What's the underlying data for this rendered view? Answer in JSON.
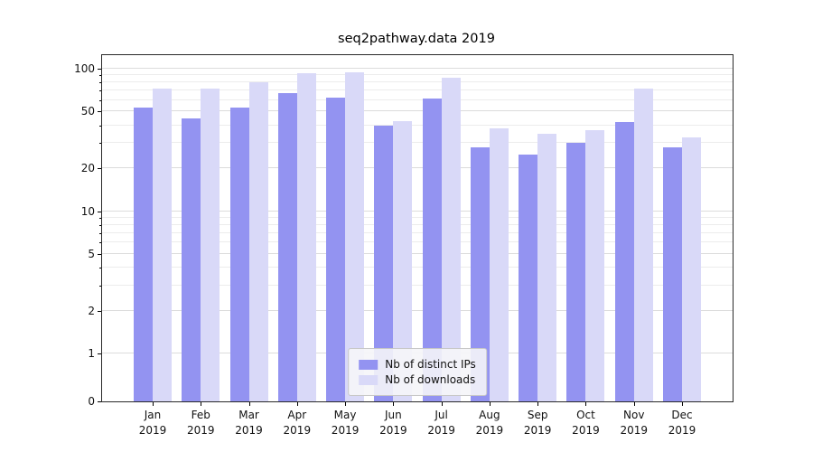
{
  "title": "seq2pathway.data 2019",
  "chart_data": {
    "type": "bar",
    "title": "seq2pathway.data 2019",
    "scale": "symlog",
    "grid": true,
    "legend_position": "lower center",
    "categories": [
      "Jan 2019",
      "Feb 2019",
      "Mar 2019",
      "Apr 2019",
      "May 2019",
      "Jun 2019",
      "Jul 2019",
      "Aug 2019",
      "Sep 2019",
      "Oct 2019",
      "Nov 2019",
      "Dec 2019"
    ],
    "series": [
      {
        "name": "Nb of distinct IPs",
        "color": "#9393f1",
        "values": [
          53,
          45,
          53,
          67,
          63,
          40,
          62,
          28,
          25,
          30,
          42,
          28
        ]
      },
      {
        "name": "Nb of downloads",
        "color": "#d9d9f8",
        "values": [
          72,
          73,
          80,
          93,
          95,
          43,
          87,
          38,
          35,
          37,
          73,
          33
        ]
      }
    ],
    "yticks": [
      0,
      1,
      2,
      5,
      10,
      20,
      50,
      100
    ],
    "yticks_minor": [
      3,
      4,
      6,
      7,
      8,
      9,
      30,
      40,
      60,
      70,
      80,
      90
    ],
    "ylim": [
      0,
      100
    ],
    "colors": {
      "grid_major": "#dcdcdc",
      "grid_minor": "#ececec",
      "axis": "#2a2a2a",
      "background": "#ffffff"
    }
  }
}
